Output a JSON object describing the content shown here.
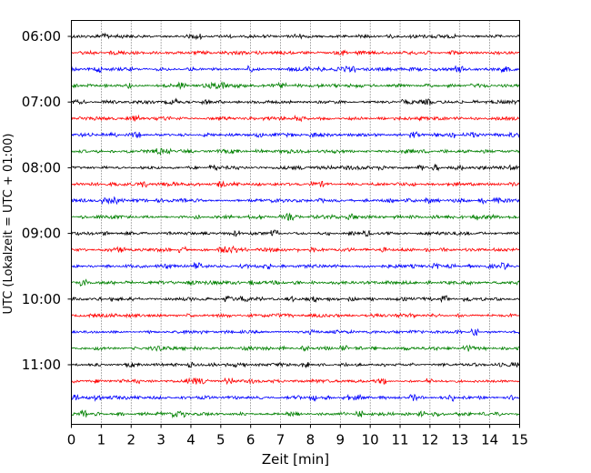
{
  "chart_data": {
    "type": "line",
    "subtype": "seismogram-helicorder",
    "xlabel": "Zeit  [min]",
    "ylabel": "UTC (Lokalzeit = UTC + 01:00)",
    "xlim": [
      0,
      15
    ],
    "x_ticks": [
      "0",
      "1",
      "2",
      "3",
      "4",
      "5",
      "6",
      "7",
      "8",
      "9",
      "10",
      "11",
      "12",
      "13",
      "14",
      "15"
    ],
    "y_tick_labels": [
      "06:00",
      "07:00",
      "08:00",
      "09:00",
      "10:00",
      "11:00"
    ],
    "grid": "vertical dotted at each minute",
    "trace_interval_minutes": 15,
    "trace_color_cycle": [
      "#000000",
      "#ff0000",
      "#0000ff",
      "#008000"
    ],
    "traces": [
      {
        "start": "06:00"
      },
      {
        "start": "06:15"
      },
      {
        "start": "06:30"
      },
      {
        "start": "06:45"
      },
      {
        "start": "07:00"
      },
      {
        "start": "07:15"
      },
      {
        "start": "07:30"
      },
      {
        "start": "07:45"
      },
      {
        "start": "08:00"
      },
      {
        "start": "08:15"
      },
      {
        "start": "08:30"
      },
      {
        "start": "08:45"
      },
      {
        "start": "09:00"
      },
      {
        "start": "09:15"
      },
      {
        "start": "09:30"
      },
      {
        "start": "09:45"
      },
      {
        "start": "10:00"
      },
      {
        "start": "10:15"
      },
      {
        "start": "10:30"
      },
      {
        "start": "10:45"
      },
      {
        "start": "11:00"
      },
      {
        "start": "11:15"
      },
      {
        "start": "11:30"
      },
      {
        "start": "11:45"
      }
    ]
  }
}
